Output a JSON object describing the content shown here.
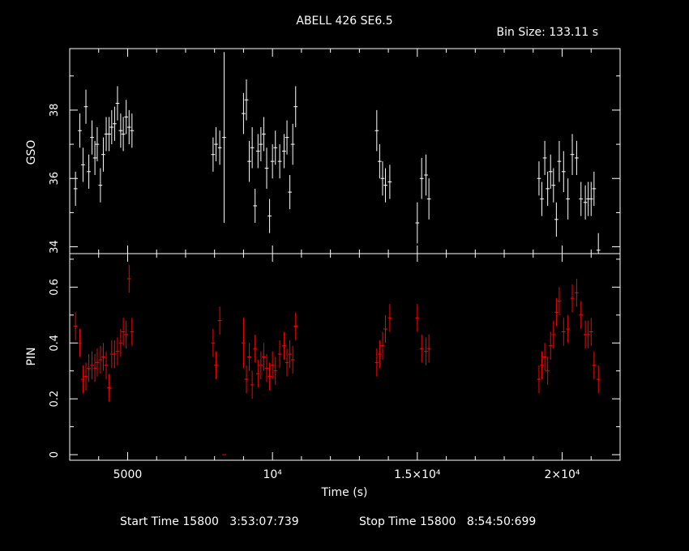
{
  "title": "ABELL 426 SE6.5",
  "bin_size_label": "Bin Size:",
  "bin_size": "133.11 s",
  "footer": {
    "start_label": "Start Time",
    "start_day": "15800",
    "start_time": "3:53:07:739",
    "stop_label": "Stop Time",
    "stop_day": "15800",
    "stop_time": "8:54:50:699"
  },
  "colors": {
    "background": "#000000",
    "axes": "#ffffff",
    "gso": "#ffffff",
    "pin": "#ff0000"
  },
  "chart_data": [
    {
      "type": "scatter",
      "panel": "top",
      "ylabel": "GSO",
      "xlabel": "",
      "xlim": [
        3000,
        22000
      ],
      "ylim": [
        33.8,
        39.8
      ],
      "yticks": [
        34,
        36,
        38
      ],
      "series": [
        {
          "x": [
            3200,
            3350,
            3460,
            3560,
            3660,
            3770,
            3870,
            3950,
            4060,
            4160,
            4260,
            4360,
            4450,
            4550,
            4650,
            4760,
            4850,
            4950,
            5050,
            5150,
            7950,
            8050,
            8180,
            8330,
            9000,
            9100,
            9200,
            9300,
            9400,
            9500,
            9600,
            9700,
            9800,
            9900,
            10000,
            10100,
            10250,
            10400,
            10500,
            10600,
            10700,
            10800,
            13600,
            13700,
            13800,
            13900,
            14050,
            15000,
            15150,
            15300,
            15400,
            19200,
            19300,
            19400,
            19500,
            19600,
            19700,
            19800,
            19900,
            20050,
            20200,
            20350,
            20500,
            20650,
            20800,
            20900,
            21000,
            21100,
            21250
          ],
          "y": [
            35.7,
            37.4,
            36.4,
            38.1,
            36.2,
            37.2,
            36.6,
            37.0,
            35.8,
            36.7,
            37.3,
            37.3,
            37.5,
            37.6,
            38.2,
            37.4,
            37.3,
            37.8,
            37.5,
            37.4,
            36.7,
            37.0,
            36.9,
            37.2,
            37.9,
            38.3,
            36.5,
            36.9,
            35.2,
            36.8,
            37.0,
            37.3,
            36.3,
            34.9,
            36.5,
            36.9,
            36.5,
            36.8,
            37.2,
            35.6,
            37.0,
            38.1,
            37.4,
            36.5,
            36.0,
            35.8,
            35.9,
            34.7,
            36.0,
            36.1,
            35.4,
            36.0,
            35.4,
            36.6,
            35.7,
            36.2,
            35.8,
            34.8,
            36.5,
            36.2,
            35.4,
            36.7,
            36.6,
            35.4,
            35.3,
            35.4,
            35.4,
            35.7,
            33.9
          ],
          "err": [
            0.5,
            0.5,
            0.5,
            0.5,
            0.5,
            0.5,
            0.5,
            0.5,
            0.5,
            0.5,
            0.5,
            0.5,
            0.5,
            0.5,
            0.5,
            0.5,
            0.5,
            0.5,
            0.5,
            0.5,
            0.5,
            0.5,
            0.5,
            2.5,
            0.6,
            0.6,
            0.6,
            0.6,
            0.5,
            0.5,
            0.5,
            0.5,
            0.6,
            0.5,
            0.5,
            0.5,
            0.5,
            0.5,
            0.5,
            0.5,
            0.6,
            0.6,
            0.6,
            0.5,
            0.5,
            0.5,
            0.5,
            0.6,
            0.6,
            0.6,
            0.6,
            0.5,
            0.5,
            0.5,
            0.5,
            0.5,
            0.5,
            0.5,
            0.6,
            0.6,
            0.6,
            0.6,
            0.5,
            0.5,
            0.5,
            0.5,
            0.5,
            0.5,
            0.5
          ]
        }
      ]
    },
    {
      "type": "scatter",
      "panel": "bottom",
      "ylabel": "PIN",
      "xlabel": "Time (s)",
      "xlim": [
        3000,
        22000
      ],
      "ylim": [
        -0.02,
        0.72
      ],
      "yticks": [
        0,
        0.2,
        0.4,
        0.6
      ],
      "xticks": [
        5000,
        10000,
        15000,
        20000
      ],
      "xtick_labels": [
        "5000",
        "10⁴",
        "1.5×10⁴",
        "2×10⁴"
      ],
      "series": [
        {
          "x": [
            3200,
            3350,
            3460,
            3560,
            3660,
            3770,
            3870,
            3950,
            4060,
            4160,
            4260,
            4360,
            4450,
            4550,
            4650,
            4760,
            4850,
            4950,
            5050,
            5150,
            7950,
            8050,
            8180,
            8330,
            9000,
            9100,
            9200,
            9300,
            9400,
            9500,
            9600,
            9700,
            9800,
            9900,
            10000,
            10100,
            10250,
            10400,
            10500,
            10600,
            10700,
            10800,
            13600,
            13700,
            13800,
            13900,
            14050,
            15000,
            15150,
            15300,
            15400,
            19200,
            19300,
            19400,
            19500,
            19600,
            19700,
            19800,
            19900,
            20050,
            20200,
            20350,
            20500,
            20650,
            20800,
            20900,
            21000,
            21100,
            21250
          ],
          "y": [
            0.46,
            0.4,
            0.27,
            0.28,
            0.31,
            0.32,
            0.31,
            0.33,
            0.34,
            0.35,
            0.32,
            0.24,
            0.36,
            0.36,
            0.37,
            0.4,
            0.44,
            0.43,
            0.63,
            0.44,
            0.4,
            0.32,
            0.48,
            0.0,
            0.4,
            0.27,
            0.35,
            0.25,
            0.38,
            0.29,
            0.32,
            0.35,
            0.31,
            0.28,
            0.32,
            0.3,
            0.36,
            0.39,
            0.33,
            0.36,
            0.34,
            0.46,
            0.33,
            0.36,
            0.39,
            0.45,
            0.49,
            0.49,
            0.38,
            0.37,
            0.38,
            0.27,
            0.32,
            0.35,
            0.3,
            0.39,
            0.43,
            0.51,
            0.55,
            0.44,
            0.45,
            0.56,
            0.58,
            0.5,
            0.43,
            0.43,
            0.44,
            0.32,
            0.27
          ],
          "err": [
            0.05,
            0.05,
            0.05,
            0.05,
            0.05,
            0.05,
            0.05,
            0.05,
            0.05,
            0.05,
            0.05,
            0.05,
            0.05,
            0.05,
            0.05,
            0.05,
            0.05,
            0.05,
            0.05,
            0.05,
            0.05,
            0.05,
            0.05,
            0.0,
            0.09,
            0.05,
            0.05,
            0.05,
            0.05,
            0.05,
            0.05,
            0.05,
            0.05,
            0.05,
            0.05,
            0.05,
            0.05,
            0.05,
            0.05,
            0.05,
            0.05,
            0.05,
            0.05,
            0.05,
            0.05,
            0.05,
            0.05,
            0.05,
            0.05,
            0.05,
            0.05,
            0.05,
            0.05,
            0.05,
            0.05,
            0.05,
            0.05,
            0.05,
            0.05,
            0.05,
            0.05,
            0.05,
            0.05,
            0.05,
            0.05,
            0.05,
            0.05,
            0.05,
            0.05
          ]
        }
      ]
    }
  ]
}
